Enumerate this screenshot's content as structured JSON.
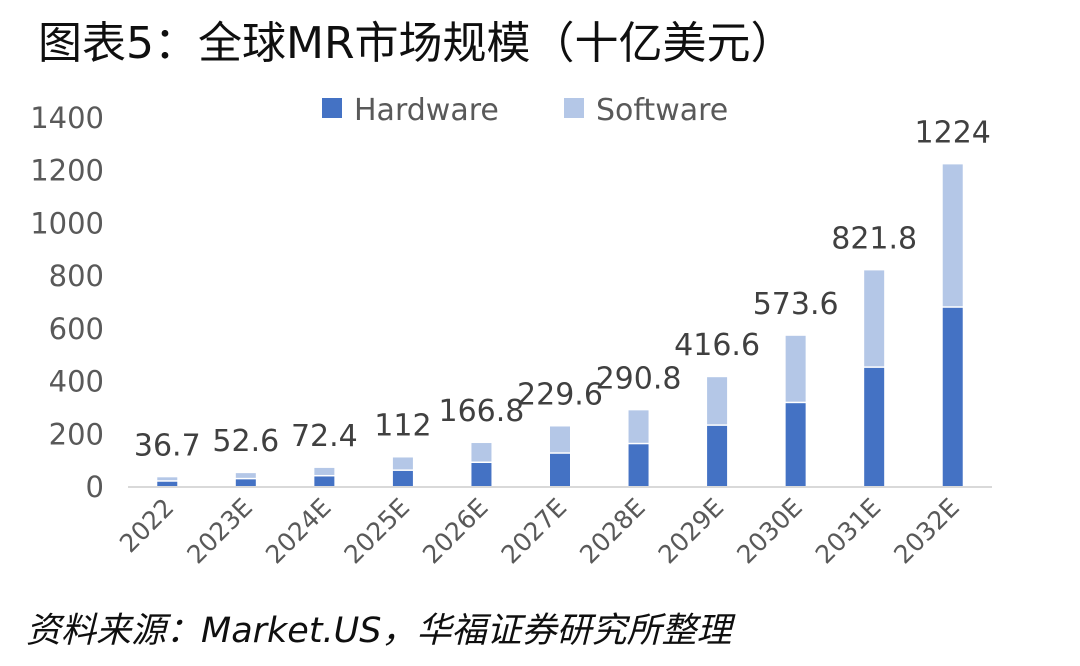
{
  "title": "图表5：全球MR市场规模（十亿美元）",
  "source": "资料来源：Market.US，华福证券研究所整理",
  "chart_data": {
    "type": "bar",
    "stacked": true,
    "categories": [
      "2022",
      "2023E",
      "2024E",
      "2025E",
      "2026E",
      "2027E",
      "2028E",
      "2029E",
      "2030E",
      "2031E",
      "2032E"
    ],
    "series": [
      {
        "name": "Hardware",
        "color": "#4472c4",
        "values": [
          20,
          29,
          40,
          61,
          91,
          126,
          162,
          232,
          318,
          452,
          680
        ]
      },
      {
        "name": "Software",
        "color": "#b4c7e7",
        "values": [
          16.7,
          23.6,
          32.4,
          51,
          75.8,
          103.6,
          128.8,
          184.6,
          255.6,
          369.8,
          544
        ]
      }
    ],
    "totals": [
      "36.7",
      "52.6",
      "72.4",
      "112",
      "166.8",
      "229.6",
      "290.8",
      "416.6",
      "573.6",
      "821.8",
      "1224"
    ],
    "yticks": [
      "0",
      "200",
      "400",
      "600",
      "800",
      "1000",
      "1200",
      "1400"
    ],
    "ylim": [
      0,
      1400
    ],
    "legend_position": "top"
  }
}
